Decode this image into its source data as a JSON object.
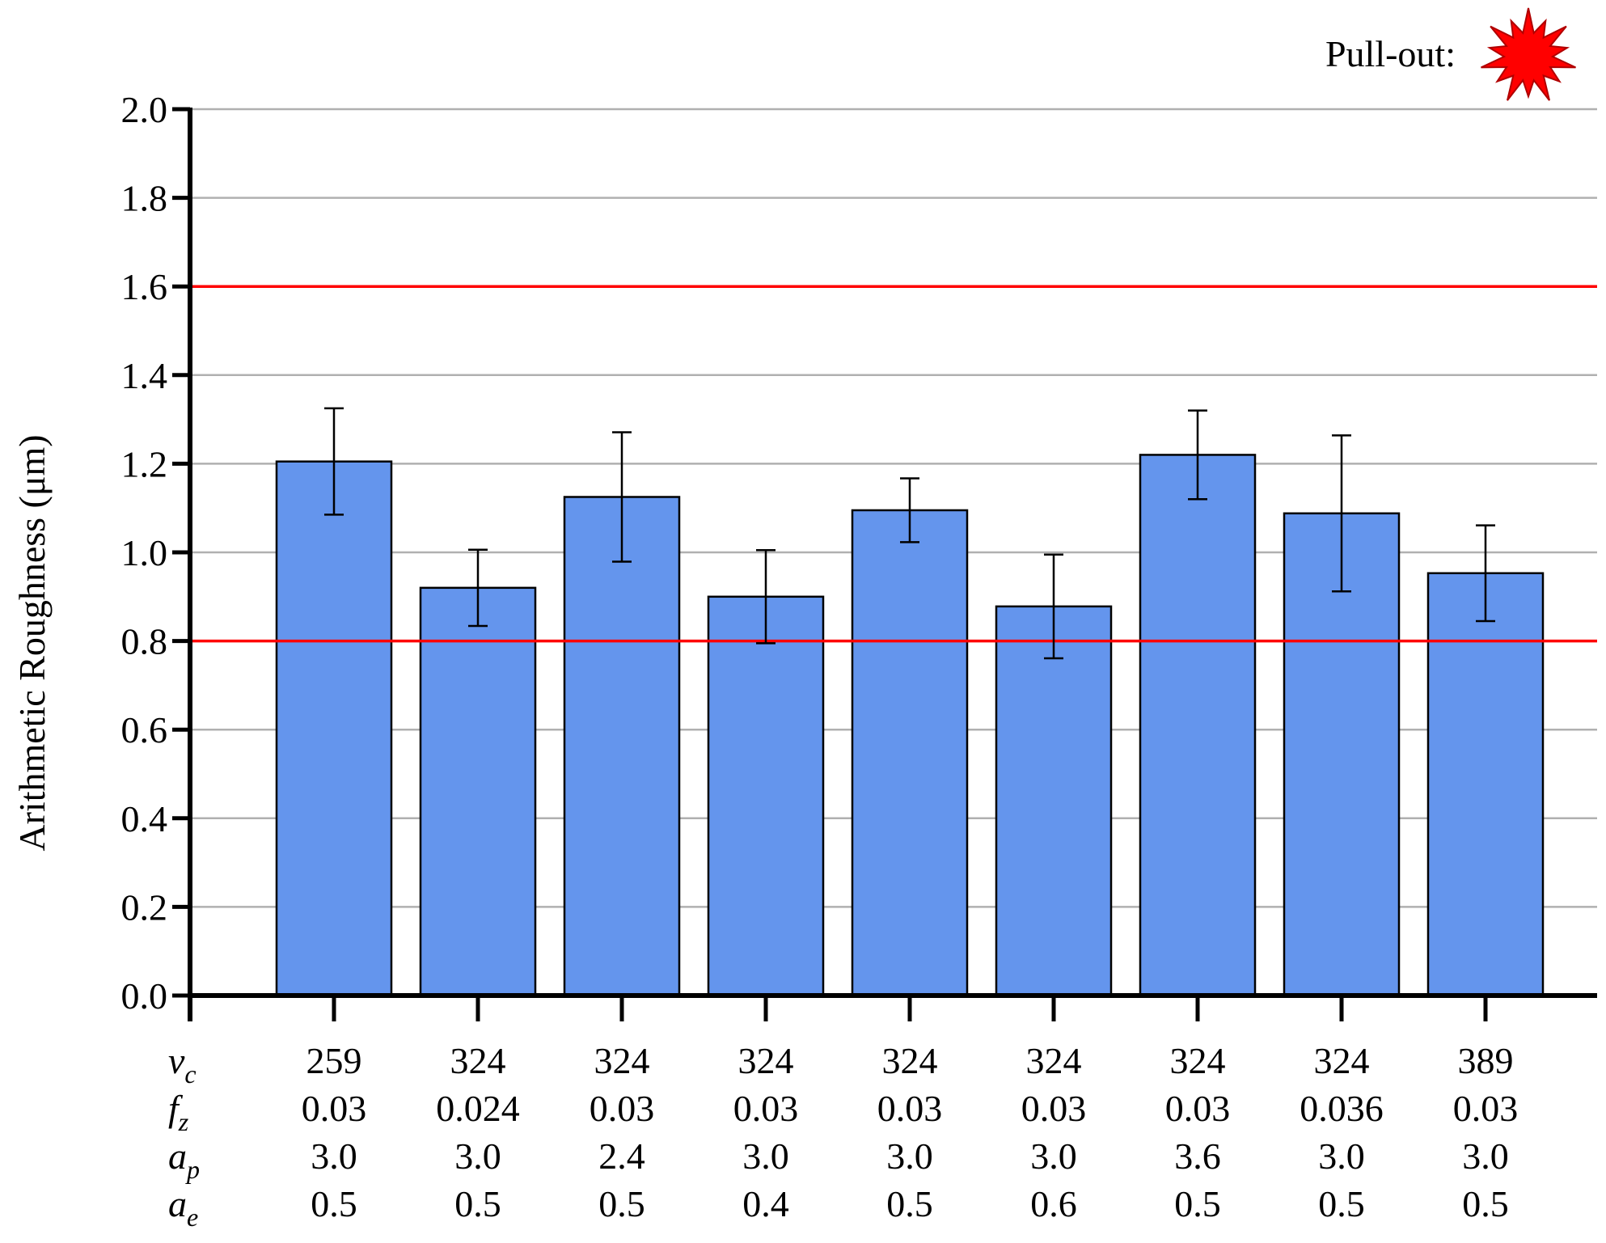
{
  "chart_data": {
    "type": "bar",
    "ylabel": "Arithmetic Roughness (μm)",
    "ylim": [
      0,
      2.0
    ],
    "yticks": [
      "0.0",
      "0.2",
      "0.4",
      "0.6",
      "0.8",
      "1.0",
      "1.2",
      "1.4",
      "1.6",
      "1.8",
      "2.0"
    ],
    "grid": true,
    "reference_lines": [
      0.8,
      1.6
    ],
    "values": [
      1.205,
      0.92,
      1.125,
      0.9,
      1.095,
      0.878,
      1.22,
      1.088,
      0.953
    ],
    "errors": [
      0.12,
      0.086,
      0.146,
      0.105,
      0.072,
      0.117,
      0.1,
      0.176,
      0.108
    ],
    "parameter_labels": [
      "v",
      "f",
      "a",
      "a"
    ],
    "parameter_subscripts": [
      "c",
      "z",
      "p",
      "e"
    ],
    "parameter_rows": [
      [
        "259",
        "324",
        "324",
        "324",
        "324",
        "324",
        "324",
        "324",
        "389"
      ],
      [
        "0.03",
        "0.024",
        "0.03",
        "0.03",
        "0.03",
        "0.03",
        "0.03",
        "0.036",
        "0.03"
      ],
      [
        "3.0",
        "3.0",
        "2.4",
        "3.0",
        "3.0",
        "3.0",
        "3.6",
        "3.0",
        "3.0"
      ],
      [
        "0.5",
        "0.5",
        "0.5",
        "0.4",
        "0.5",
        "0.6",
        "0.5",
        "0.5",
        "0.5"
      ]
    ],
    "legend": {
      "label": "Pull-out:",
      "marker": "red-starburst",
      "position": "top-right"
    },
    "colors": {
      "bar": "#6495ED",
      "reference": "#FF0000",
      "grid": "#B0B0B0",
      "marker": "#FF0000"
    }
  }
}
